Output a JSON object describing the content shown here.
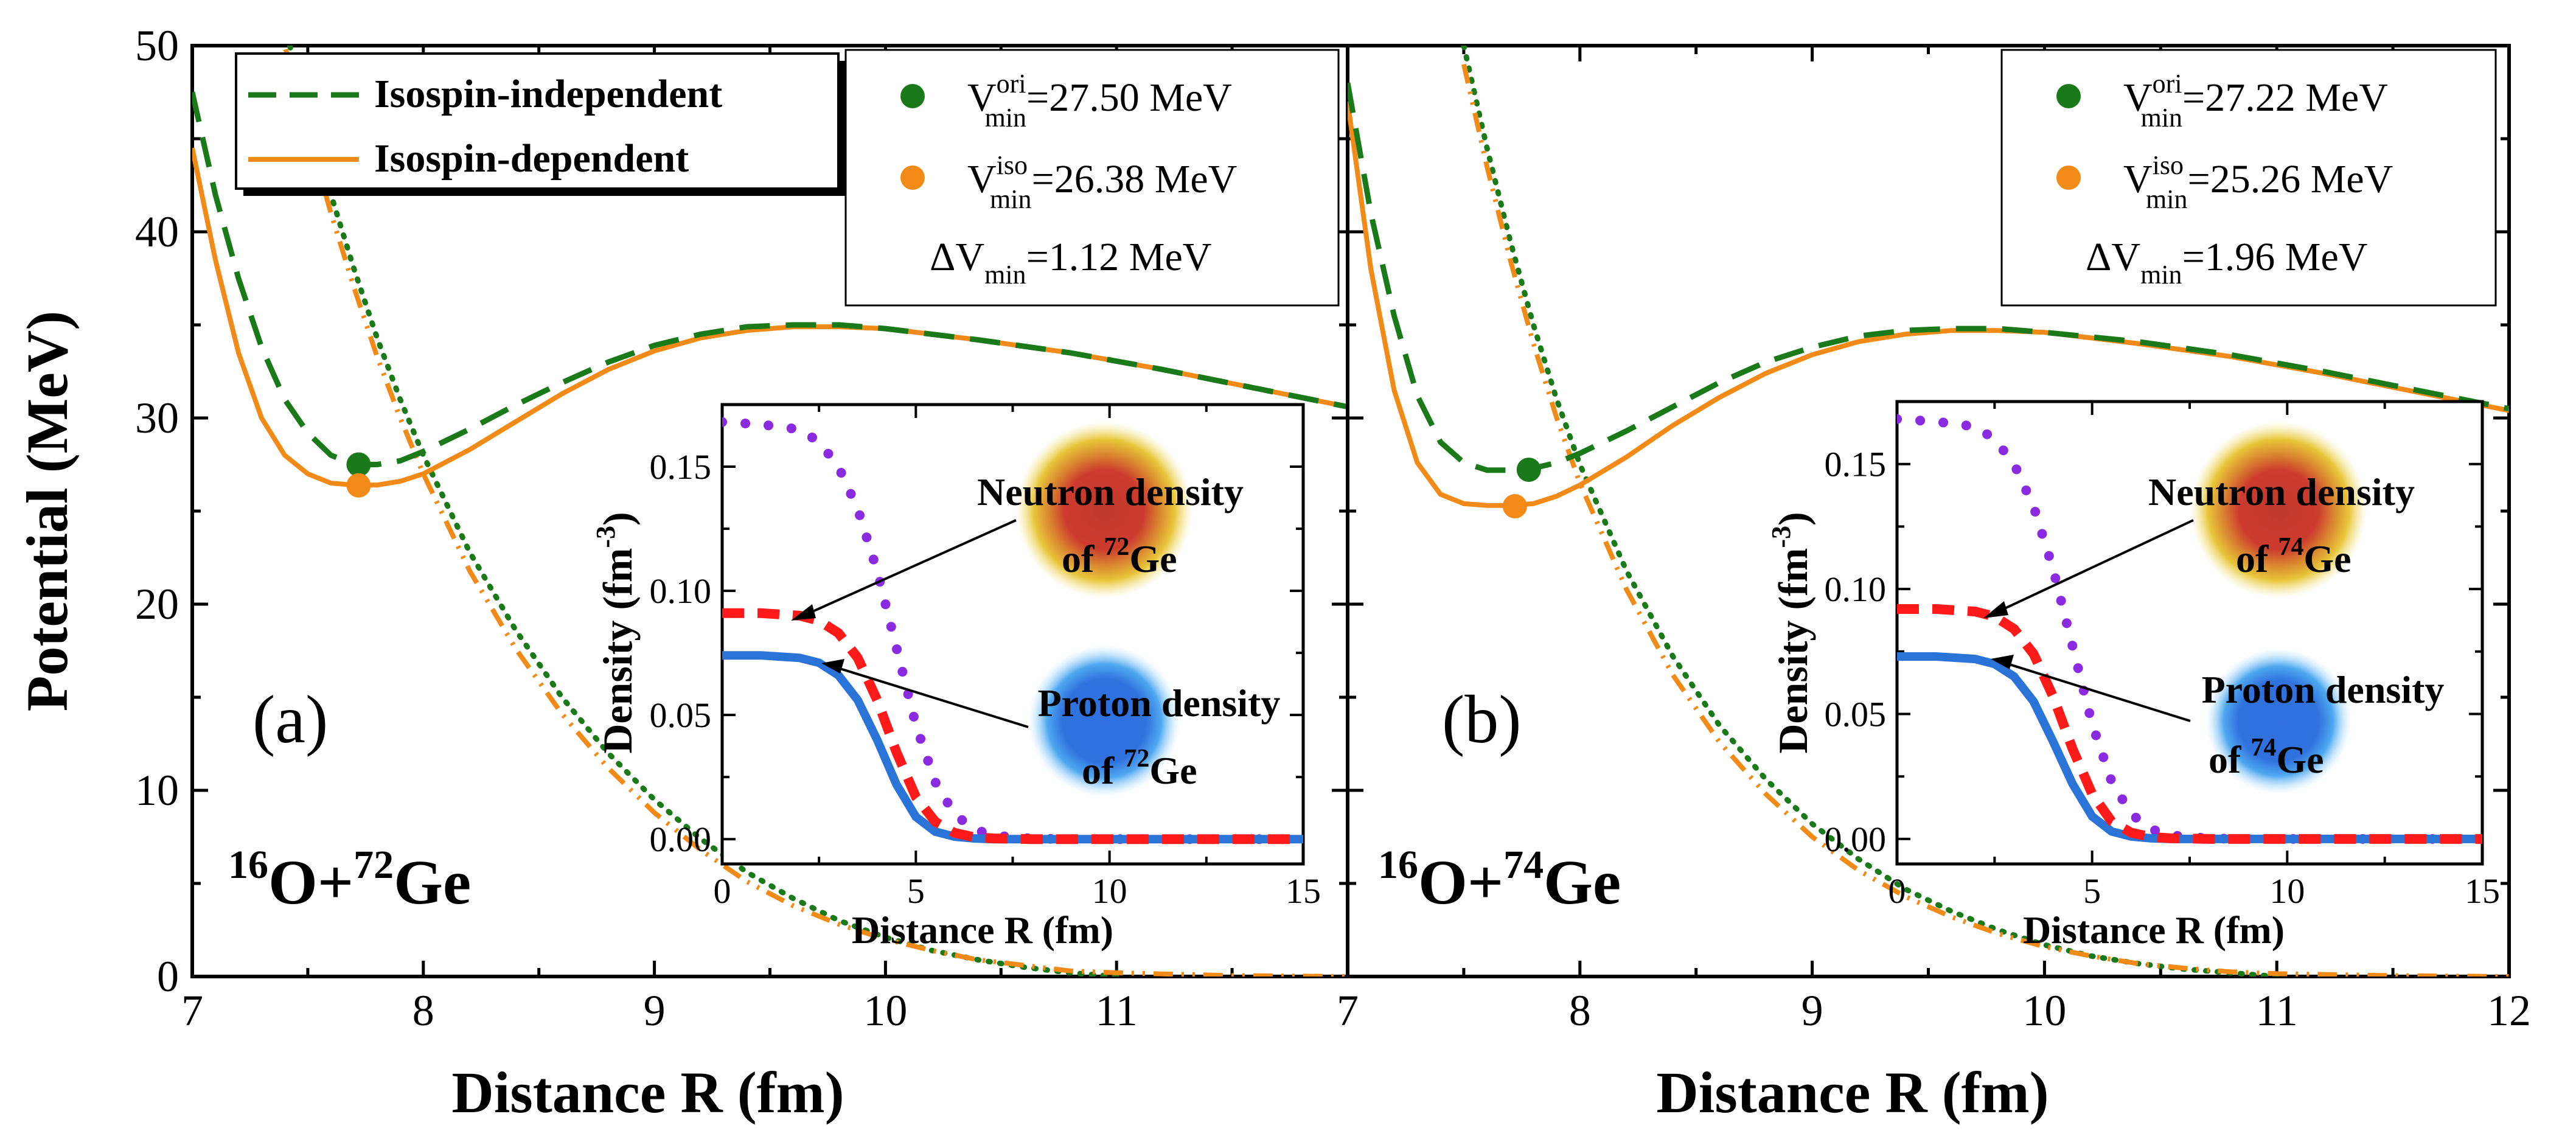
{
  "colors": {
    "green": "#1a7a1a",
    "orange": "#f28a17",
    "purple": "#8a2be2",
    "red": "#ff1a1a",
    "blue": "#2a74d8",
    "axis": "#000000"
  },
  "chart_data": [
    {
      "type": "line",
      "panel_label": "(a)",
      "reaction": {
        "a": "16",
        "p": "O+",
        "b": "72",
        "t": "Ge"
      },
      "ylabel": "Potential (MeV)",
      "xlabel": "Distance R (fm)",
      "xlim": [
        7,
        12
      ],
      "ylim": [
        0,
        50
      ],
      "x_ticks": [
        "7",
        "8",
        "9",
        "10",
        "11",
        "7"
      ],
      "y_ticks": [
        "0",
        "10",
        "20",
        "30",
        "40",
        "50"
      ],
      "legend": {
        "iso_indep": "Isospin-independent",
        "iso_dep": "Isospin-dependent"
      },
      "min_box": {
        "ori": {
          "V": "V",
          "sup": "ori",
          "sub": "min",
          "val": "=27.50 MeV"
        },
        "iso": {
          "V": "V",
          "sup": "iso",
          "sub": "min",
          "val": "=26.38 MeV"
        },
        "dv": {
          "pre": "ΔV",
          "sub": "min",
          "val": "=1.12  MeV"
        }
      },
      "series": [
        {
          "name": "Isospin-independent",
          "x": [
            7.0,
            7.1,
            7.2,
            7.3,
            7.4,
            7.5,
            7.6,
            7.7,
            7.8,
            7.9,
            8.0,
            8.2,
            8.4,
            8.6,
            8.8,
            9.0,
            9.2,
            9.4,
            9.6,
            9.8,
            10.0,
            10.4,
            10.8,
            11.2,
            11.6,
            12.0
          ],
          "y": [
            47.5,
            42.0,
            37.5,
            33.8,
            31.0,
            29.2,
            28.0,
            27.5,
            27.5,
            27.7,
            28.2,
            29.4,
            30.7,
            31.9,
            33.0,
            33.9,
            34.5,
            34.9,
            35.0,
            35.0,
            34.8,
            34.2,
            33.5,
            32.6,
            31.6,
            30.6
          ]
        },
        {
          "name": "Isospin-dependent",
          "x": [
            7.0,
            7.1,
            7.2,
            7.3,
            7.4,
            7.5,
            7.6,
            7.7,
            7.8,
            7.9,
            8.0,
            8.2,
            8.4,
            8.6,
            8.8,
            9.0,
            9.2,
            9.4,
            9.6,
            9.8,
            10.0,
            10.4,
            10.8,
            11.2,
            11.6,
            12.0
          ],
          "y": [
            44.5,
            38.5,
            33.5,
            30.0,
            28.0,
            27.0,
            26.5,
            26.4,
            26.4,
            26.6,
            27.0,
            28.3,
            29.8,
            31.3,
            32.6,
            33.6,
            34.3,
            34.7,
            34.9,
            34.9,
            34.8,
            34.2,
            33.5,
            32.6,
            31.6,
            30.6
          ]
        },
        {
          "name": "green-dotted",
          "x": [
            7.3,
            7.4,
            7.5,
            7.6,
            7.7,
            7.8,
            7.9,
            8.0,
            8.2,
            8.4,
            8.6,
            8.8,
            9.0,
            9.2,
            9.4,
            9.6,
            9.8,
            10.0,
            10.2,
            10.4,
            10.6,
            10.8,
            11.0
          ],
          "y": [
            56,
            51,
            46.5,
            42,
            38,
            34.3,
            31,
            28,
            22.8,
            18.6,
            15.0,
            12.0,
            9.5,
            7.4,
            5.6,
            4.2,
            3.0,
            2.1,
            1.4,
            0.9,
            0.5,
            0.2,
            0.0
          ]
        },
        {
          "name": "orange-dashdot",
          "x": [
            7.3,
            7.4,
            7.5,
            7.6,
            7.7,
            7.8,
            7.9,
            8.0,
            8.2,
            8.4,
            8.6,
            8.8,
            9.0,
            9.2,
            9.4,
            9.6,
            9.8,
            10.0,
            10.2,
            10.4,
            10.6,
            10.8,
            11.0,
            11.5,
            12.0
          ],
          "y": [
            55,
            50,
            45.5,
            41,
            37,
            33.3,
            30,
            27,
            21.8,
            17.6,
            14.1,
            11.2,
            8.8,
            6.8,
            5.1,
            3.8,
            2.8,
            2.0,
            1.4,
            0.9,
            0.6,
            0.3,
            0.2,
            0.05,
            0.0
          ]
        }
      ],
      "minima": [
        {
          "x": 7.72,
          "y": 27.5
        },
        {
          "x": 7.72,
          "y": 26.38
        }
      ],
      "inset": {
        "xlabel": "Distance R (fm)",
        "ylabel": "Density (fm",
        "ylabel_sup": "-3",
        "ylabel_close": ")",
        "xlim": [
          0,
          15
        ],
        "ylim": [
          -0.01,
          0.175
        ],
        "x_ticks": [
          "0",
          "5",
          "10",
          "15"
        ],
        "y_ticks": [
          "0.00",
          "0.05",
          "0.10",
          "0.15"
        ],
        "series": [
          {
            "name": "purple-dots",
            "x": [
              0,
              1,
              2,
              2.5,
              3,
              3.5,
              4,
              4.5,
              5,
              5.5,
              6,
              6.5,
              7,
              8,
              9,
              10,
              11,
              12,
              13,
              14,
              15
            ],
            "y": [
              0.168,
              0.167,
              0.165,
              0.16,
              0.15,
              0.133,
              0.108,
              0.077,
              0.046,
              0.023,
              0.01,
              0.004,
              0.0015,
              0.0002,
              0,
              0,
              0,
              0,
              0,
              0,
              0
            ]
          },
          {
            "name": "red-dashes",
            "x": [
              0,
              1,
              2,
              2.5,
              3,
              3.5,
              4,
              4.5,
              5,
              5.5,
              6,
              6.5,
              7,
              8,
              9,
              10,
              11,
              12,
              13,
              14,
              15
            ],
            "y": [
              0.091,
              0.091,
              0.09,
              0.088,
              0.083,
              0.073,
              0.056,
              0.035,
              0.017,
              0.007,
              0.0025,
              0.0008,
              0.0003,
              0,
              0,
              0,
              0,
              0,
              0,
              0,
              0
            ]
          },
          {
            "name": "blue-solid",
            "x": [
              0,
              1,
              2,
              2.5,
              3,
              3.5,
              4,
              4.5,
              5,
              5.5,
              6,
              6.5,
              7,
              8,
              9,
              10,
              11,
              12,
              13,
              14,
              15
            ],
            "y": [
              0.074,
              0.074,
              0.073,
              0.071,
              0.066,
              0.056,
              0.04,
              0.022,
              0.009,
              0.003,
              0.001,
              0.0003,
              0,
              0,
              0,
              0,
              0,
              0,
              0,
              0,
              0
            ]
          }
        ],
        "neutron_label": {
          "l1": "Neutron density",
          "of": "of ",
          "sup": "72",
          "el": "Ge"
        },
        "proton_label": {
          "l1": "Proton density",
          "of": "of ",
          "sup": "72",
          "el": "Ge"
        }
      }
    },
    {
      "type": "line",
      "panel_label": "(b)",
      "reaction": {
        "a": "16",
        "p": "O+",
        "b": "74",
        "t": "Ge"
      },
      "xlabel": "Distance R (fm)",
      "xlim": [
        7,
        12
      ],
      "ylim": [
        0,
        50
      ],
      "x_ticks": [
        "8",
        "9",
        "10",
        "11",
        "12"
      ],
      "min_box": {
        "ori": {
          "V": "V",
          "sup": "ori",
          "sub": "min",
          "val": "=27.22 MeV"
        },
        "iso": {
          "V": "V",
          "sup": "iso",
          "sub": "min",
          "val": "=25.26 MeV"
        },
        "dv": {
          "pre": "ΔV",
          "sub": "min",
          "val": "=1.96  MeV"
        }
      },
      "series": [
        {
          "name": "Isospin-independent",
          "x": [
            7.0,
            7.1,
            7.2,
            7.3,
            7.4,
            7.5,
            7.6,
            7.7,
            7.8,
            7.9,
            8.0,
            8.2,
            8.4,
            8.6,
            8.8,
            9.0,
            9.2,
            9.4,
            9.6,
            9.8,
            10.0,
            10.4,
            10.8,
            11.2,
            11.6,
            12.0
          ],
          "y": [
            48.0,
            41.0,
            35.5,
            31.2,
            28.7,
            27.6,
            27.2,
            27.2,
            27.3,
            27.6,
            28.1,
            29.3,
            30.6,
            31.9,
            33.0,
            33.8,
            34.4,
            34.7,
            34.8,
            34.8,
            34.6,
            34.1,
            33.4,
            32.5,
            31.5,
            30.5
          ]
        },
        {
          "name": "Isospin-dependent",
          "x": [
            7.0,
            7.1,
            7.2,
            7.3,
            7.4,
            7.5,
            7.6,
            7.7,
            7.8,
            7.9,
            8.0,
            8.2,
            8.4,
            8.6,
            8.8,
            9.0,
            9.2,
            9.4,
            9.6,
            9.8,
            10.0,
            10.4,
            10.8,
            11.2,
            11.6,
            12.0
          ],
          "y": [
            47.0,
            38.0,
            31.5,
            27.6,
            25.9,
            25.4,
            25.3,
            25.3,
            25.4,
            25.8,
            26.4,
            27.9,
            29.6,
            31.1,
            32.4,
            33.4,
            34.1,
            34.5,
            34.7,
            34.7,
            34.6,
            34.0,
            33.3,
            32.4,
            31.4,
            30.4
          ]
        },
        {
          "name": "green-dotted",
          "x": [
            7.5,
            7.6,
            7.7,
            7.8,
            7.9,
            8.0,
            8.2,
            8.4,
            8.6,
            8.8,
            9.0,
            9.2,
            9.4,
            9.6,
            9.8,
            10.0,
            10.2,
            10.4,
            10.6,
            10.8,
            11.0
          ],
          "y": [
            50,
            44.5,
            39.5,
            35,
            31,
            27.5,
            21.8,
            17.2,
            13.5,
            10.6,
            8.2,
            6.3,
            4.7,
            3.5,
            2.5,
            1.7,
            1.1,
            0.7,
            0.4,
            0.2,
            0.0
          ]
        },
        {
          "name": "orange-dashdot",
          "x": [
            7.5,
            7.6,
            7.7,
            7.8,
            7.9,
            8.0,
            8.2,
            8.4,
            8.6,
            8.8,
            9.0,
            9.2,
            9.4,
            9.6,
            9.8,
            10.0,
            10.2,
            10.4,
            10.6,
            10.8,
            11.0,
            11.5,
            12.0
          ],
          "y": [
            49,
            43.5,
            38.5,
            34,
            30,
            26.5,
            20.8,
            16.2,
            12.6,
            9.8,
            7.5,
            5.7,
            4.3,
            3.2,
            2.3,
            1.6,
            1.1,
            0.7,
            0.45,
            0.25,
            0.15,
            0.05,
            0.0
          ]
        }
      ],
      "minima": [
        {
          "x": 7.78,
          "y": 27.22
        },
        {
          "x": 7.72,
          "y": 25.26
        }
      ],
      "inset": {
        "xlabel": "Distance R (fm)",
        "ylabel": "Density (fm",
        "ylabel_sup": "-3",
        "ylabel_close": ")",
        "xlim": [
          0,
          15
        ],
        "ylim": [
          -0.01,
          0.175
        ],
        "x_ticks": [
          "0",
          "5",
          "10",
          "15"
        ],
        "y_ticks": [
          "0.00",
          "0.05",
          "0.10",
          "0.15"
        ],
        "series": [
          {
            "name": "purple-dots",
            "x": [
              0,
              1,
              2,
              2.5,
              3,
              3.5,
              4,
              4.5,
              5,
              5.5,
              6,
              6.5,
              7,
              8,
              9,
              10,
              11,
              12,
              13,
              14,
              15
            ],
            "y": [
              0.168,
              0.167,
              0.165,
              0.16,
              0.15,
              0.133,
              0.108,
              0.077,
              0.046,
              0.023,
              0.01,
              0.004,
              0.0015,
              0.0002,
              0,
              0,
              0,
              0,
              0,
              0,
              0
            ]
          },
          {
            "name": "red-dashes",
            "x": [
              0,
              1,
              2,
              2.5,
              3,
              3.5,
              4,
              4.5,
              5,
              5.5,
              6,
              6.5,
              7,
              8,
              9,
              10,
              11,
              12,
              13,
              14,
              15
            ],
            "y": [
              0.092,
              0.092,
              0.091,
              0.089,
              0.084,
              0.074,
              0.057,
              0.036,
              0.018,
              0.007,
              0.0025,
              0.0008,
              0.0003,
              0,
              0,
              0,
              0,
              0,
              0,
              0,
              0
            ]
          },
          {
            "name": "blue-solid",
            "x": [
              0,
              1,
              2,
              2.5,
              3,
              3.5,
              4,
              4.5,
              5,
              5.5,
              6,
              6.5,
              7,
              8,
              9,
              10,
              11,
              12,
              13,
              14,
              15
            ],
            "y": [
              0.073,
              0.073,
              0.072,
              0.07,
              0.065,
              0.055,
              0.039,
              0.022,
              0.009,
              0.003,
              0.001,
              0.0003,
              0,
              0,
              0,
              0,
              0,
              0,
              0,
              0,
              0
            ]
          }
        ],
        "neutron_label": {
          "l1": "Neutron density",
          "of": "of ",
          "sup": "74",
          "el": "Ge"
        },
        "proton_label": {
          "l1": "Proton density",
          "of": "of ",
          "sup": "74",
          "el": "Ge"
        }
      }
    }
  ]
}
